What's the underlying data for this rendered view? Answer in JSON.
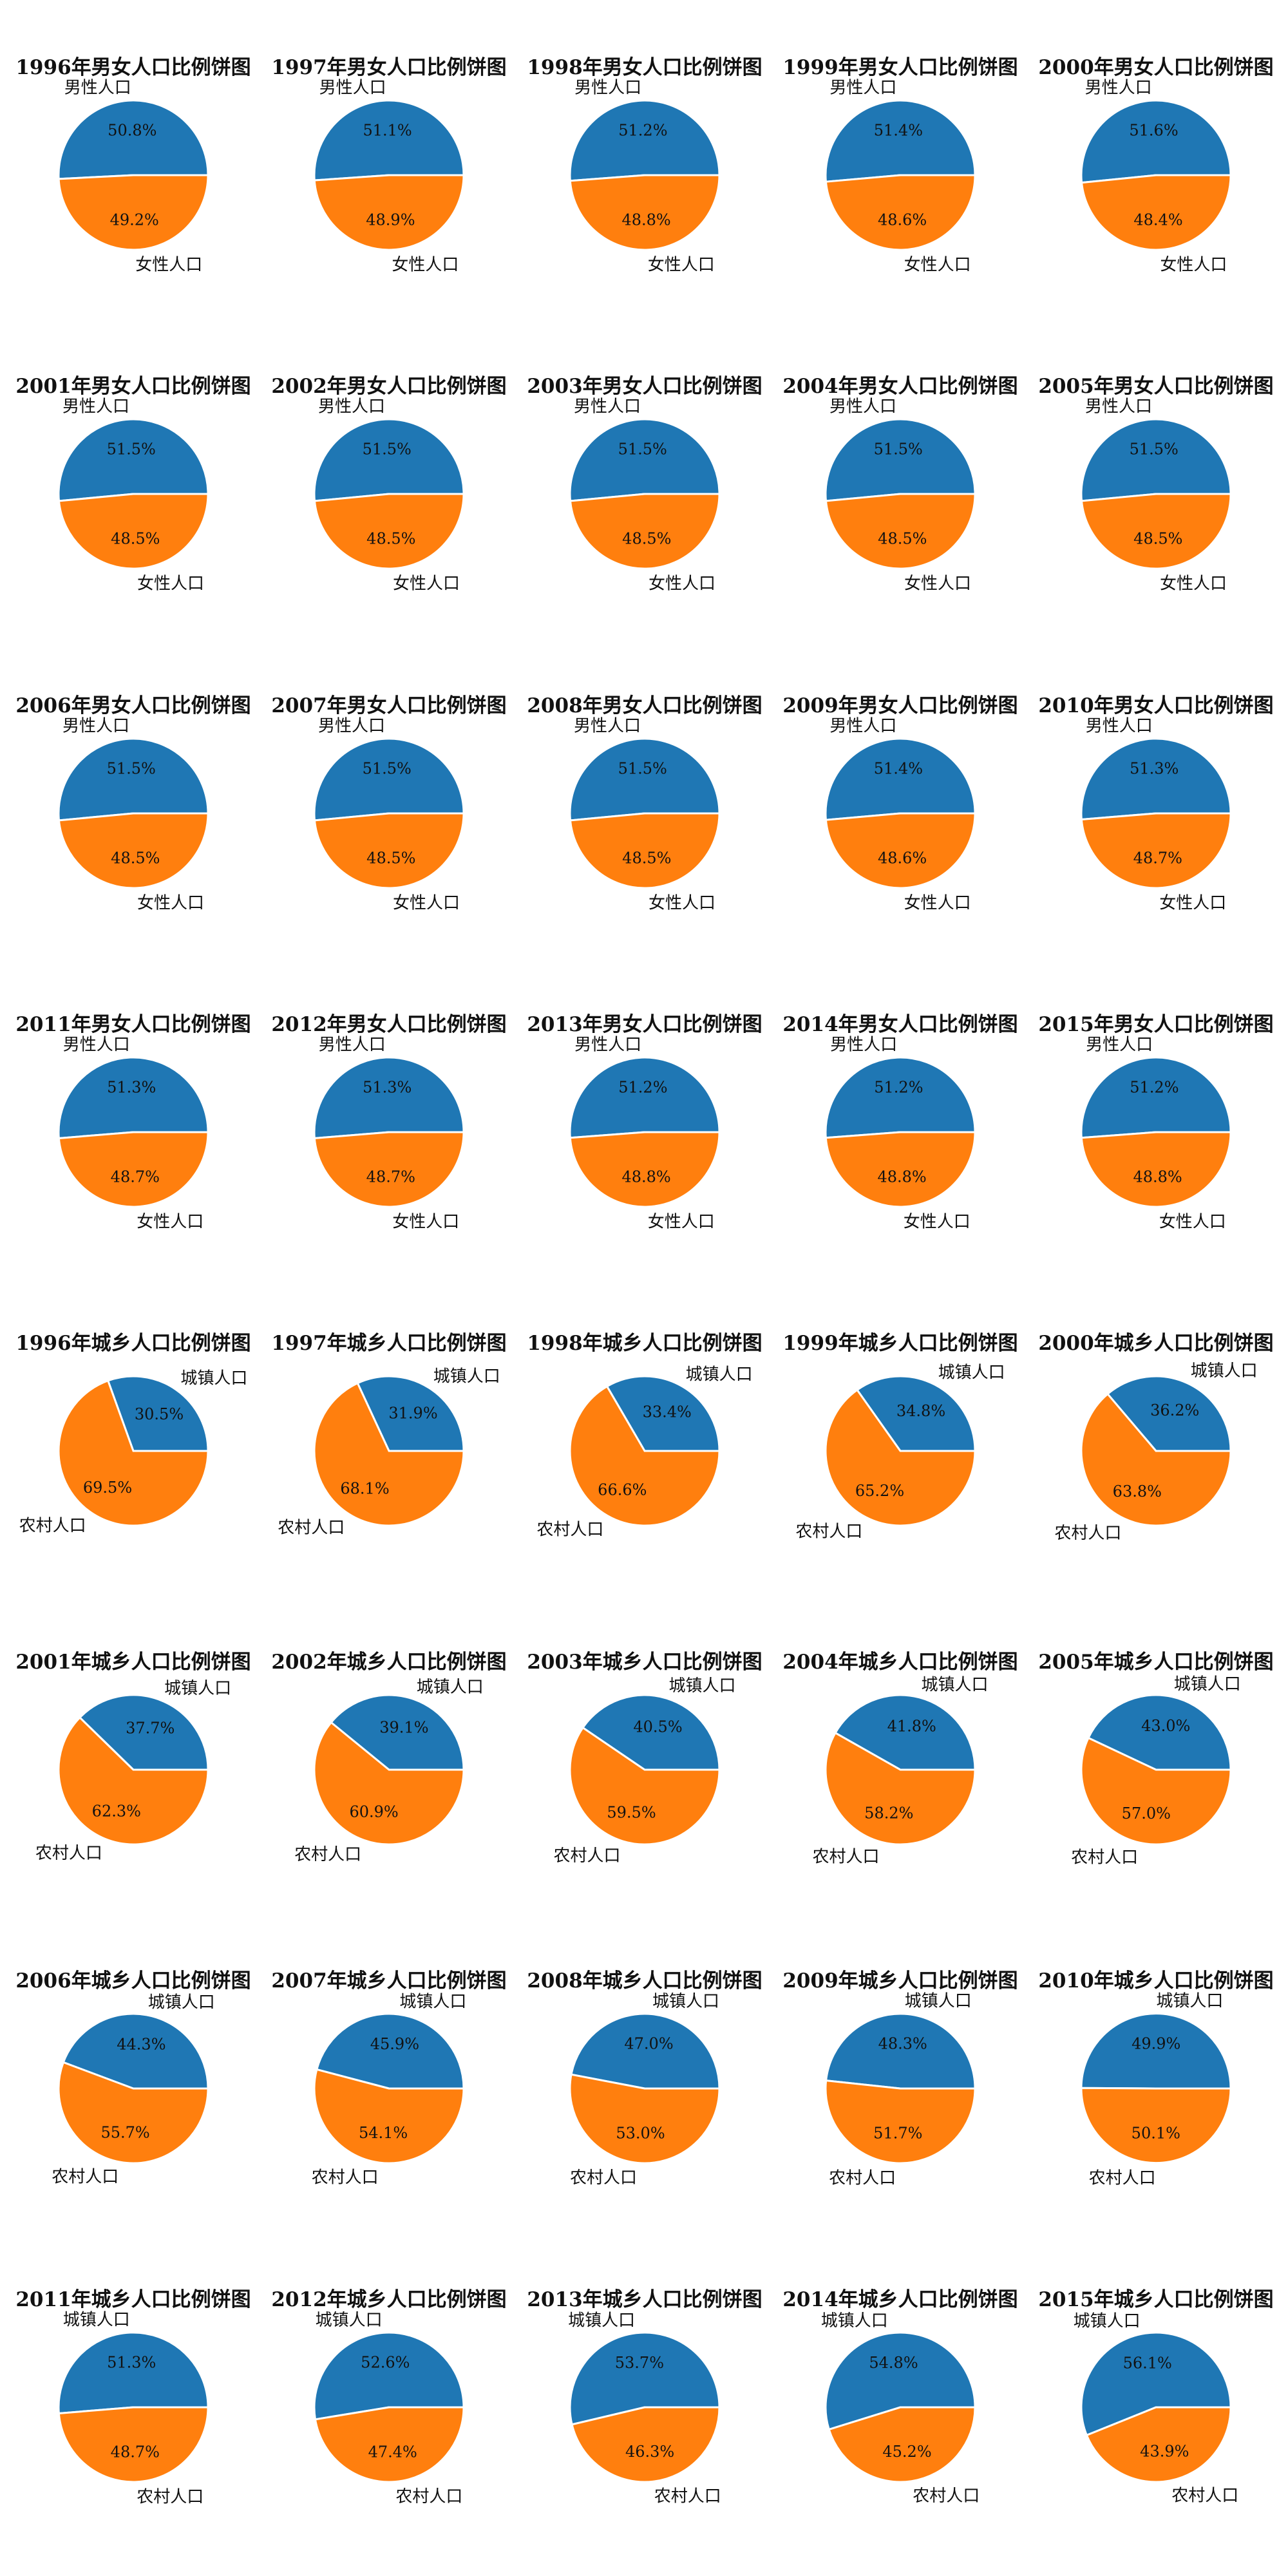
{
  "colors": {
    "series1": "#1f77b4",
    "series2": "#ff7f0e"
  },
  "chart_data": [
    {
      "type": "pie",
      "title": "1996年男女人口比例饼图",
      "labels": [
        "男性人口",
        "女性人口"
      ],
      "values": [
        50.8,
        49.2
      ],
      "percent_labels": [
        "50.8%",
        "49.2%"
      ]
    },
    {
      "type": "pie",
      "title": "1997年男女人口比例饼图",
      "labels": [
        "男性人口",
        "女性人口"
      ],
      "values": [
        51.1,
        48.9
      ],
      "percent_labels": [
        "51.1%",
        "48.9%"
      ]
    },
    {
      "type": "pie",
      "title": "1998年男女人口比例饼图",
      "labels": [
        "男性人口",
        "女性人口"
      ],
      "values": [
        51.2,
        48.8
      ],
      "percent_labels": [
        "51.2%",
        "48.8%"
      ]
    },
    {
      "type": "pie",
      "title": "1999年男女人口比例饼图",
      "labels": [
        "男性人口",
        "女性人口"
      ],
      "values": [
        51.4,
        48.6
      ],
      "percent_labels": [
        "51.4%",
        "48.6%"
      ]
    },
    {
      "type": "pie",
      "title": "2000年男女人口比例饼图",
      "labels": [
        "男性人口",
        "女性人口"
      ],
      "values": [
        51.6,
        48.4
      ],
      "percent_labels": [
        "51.6%",
        "48.4%"
      ]
    },
    {
      "type": "pie",
      "title": "2001年男女人口比例饼图",
      "labels": [
        "男性人口",
        "女性人口"
      ],
      "values": [
        51.5,
        48.5
      ],
      "percent_labels": [
        "51.5%",
        "48.5%"
      ]
    },
    {
      "type": "pie",
      "title": "2002年男女人口比例饼图",
      "labels": [
        "男性人口",
        "女性人口"
      ],
      "values": [
        51.5,
        48.5
      ],
      "percent_labels": [
        "51.5%",
        "48.5%"
      ]
    },
    {
      "type": "pie",
      "title": "2003年男女人口比例饼图",
      "labels": [
        "男性人口",
        "女性人口"
      ],
      "values": [
        51.5,
        48.5
      ],
      "percent_labels": [
        "51.5%",
        "48.5%"
      ]
    },
    {
      "type": "pie",
      "title": "2004年男女人口比例饼图",
      "labels": [
        "男性人口",
        "女性人口"
      ],
      "values": [
        51.5,
        48.5
      ],
      "percent_labels": [
        "51.5%",
        "48.5%"
      ]
    },
    {
      "type": "pie",
      "title": "2005年男女人口比例饼图",
      "labels": [
        "男性人口",
        "女性人口"
      ],
      "values": [
        51.5,
        48.5
      ],
      "percent_labels": [
        "51.5%",
        "48.5%"
      ]
    },
    {
      "type": "pie",
      "title": "2006年男女人口比例饼图",
      "labels": [
        "男性人口",
        "女性人口"
      ],
      "values": [
        51.5,
        48.5
      ],
      "percent_labels": [
        "51.5%",
        "48.5%"
      ]
    },
    {
      "type": "pie",
      "title": "2007年男女人口比例饼图",
      "labels": [
        "男性人口",
        "女性人口"
      ],
      "values": [
        51.5,
        48.5
      ],
      "percent_labels": [
        "51.5%",
        "48.5%"
      ]
    },
    {
      "type": "pie",
      "title": "2008年男女人口比例饼图",
      "labels": [
        "男性人口",
        "女性人口"
      ],
      "values": [
        51.5,
        48.5
      ],
      "percent_labels": [
        "51.5%",
        "48.5%"
      ]
    },
    {
      "type": "pie",
      "title": "2009年男女人口比例饼图",
      "labels": [
        "男性人口",
        "女性人口"
      ],
      "values": [
        51.4,
        48.6
      ],
      "percent_labels": [
        "51.4%",
        "48.6%"
      ]
    },
    {
      "type": "pie",
      "title": "2010年男女人口比例饼图",
      "labels": [
        "男性人口",
        "女性人口"
      ],
      "values": [
        51.3,
        48.7
      ],
      "percent_labels": [
        "51.3%",
        "48.7%"
      ]
    },
    {
      "type": "pie",
      "title": "2011年男女人口比例饼图",
      "labels": [
        "男性人口",
        "女性人口"
      ],
      "values": [
        51.3,
        48.7
      ],
      "percent_labels": [
        "51.3%",
        "48.7%"
      ]
    },
    {
      "type": "pie",
      "title": "2012年男女人口比例饼图",
      "labels": [
        "男性人口",
        "女性人口"
      ],
      "values": [
        51.3,
        48.7
      ],
      "percent_labels": [
        "51.3%",
        "48.7%"
      ]
    },
    {
      "type": "pie",
      "title": "2013年男女人口比例饼图",
      "labels": [
        "男性人口",
        "女性人口"
      ],
      "values": [
        51.2,
        48.8
      ],
      "percent_labels": [
        "51.2%",
        "48.8%"
      ]
    },
    {
      "type": "pie",
      "title": "2014年男女人口比例饼图",
      "labels": [
        "男性人口",
        "女性人口"
      ],
      "values": [
        51.2,
        48.8
      ],
      "percent_labels": [
        "51.2%",
        "48.8%"
      ]
    },
    {
      "type": "pie",
      "title": "2015年男女人口比例饼图",
      "labels": [
        "男性人口",
        "女性人口"
      ],
      "values": [
        51.2,
        48.8
      ],
      "percent_labels": [
        "51.2%",
        "48.8%"
      ]
    },
    {
      "type": "pie",
      "title": "1996年城乡人口比例饼图",
      "labels": [
        "城镇人口",
        "农村人口"
      ],
      "values": [
        30.5,
        69.5
      ],
      "percent_labels": [
        "30.5%",
        "69.5%"
      ]
    },
    {
      "type": "pie",
      "title": "1997年城乡人口比例饼图",
      "labels": [
        "城镇人口",
        "农村人口"
      ],
      "values": [
        31.9,
        68.1
      ],
      "percent_labels": [
        "31.9%",
        "68.1%"
      ]
    },
    {
      "type": "pie",
      "title": "1998年城乡人口比例饼图",
      "labels": [
        "城镇人口",
        "农村人口"
      ],
      "values": [
        33.4,
        66.6
      ],
      "percent_labels": [
        "33.4%",
        "66.6%"
      ]
    },
    {
      "type": "pie",
      "title": "1999年城乡人口比例饼图",
      "labels": [
        "城镇人口",
        "农村人口"
      ],
      "values": [
        34.8,
        65.2
      ],
      "percent_labels": [
        "34.8%",
        "65.2%"
      ]
    },
    {
      "type": "pie",
      "title": "2000年城乡人口比例饼图",
      "labels": [
        "城镇人口",
        "农村人口"
      ],
      "values": [
        36.2,
        63.8
      ],
      "percent_labels": [
        "36.2%",
        "63.8%"
      ]
    },
    {
      "type": "pie",
      "title": "2001年城乡人口比例饼图",
      "labels": [
        "城镇人口",
        "农村人口"
      ],
      "values": [
        37.7,
        62.3
      ],
      "percent_labels": [
        "37.7%",
        "62.3%"
      ]
    },
    {
      "type": "pie",
      "title": "2002年城乡人口比例饼图",
      "labels": [
        "城镇人口",
        "农村人口"
      ],
      "values": [
        39.1,
        60.9
      ],
      "percent_labels": [
        "39.1%",
        "60.9%"
      ]
    },
    {
      "type": "pie",
      "title": "2003年城乡人口比例饼图",
      "labels": [
        "城镇人口",
        "农村人口"
      ],
      "values": [
        40.5,
        59.5
      ],
      "percent_labels": [
        "40.5%",
        "59.5%"
      ]
    },
    {
      "type": "pie",
      "title": "2004年城乡人口比例饼图",
      "labels": [
        "城镇人口",
        "农村人口"
      ],
      "values": [
        41.8,
        58.2
      ],
      "percent_labels": [
        "41.8%",
        "58.2%"
      ]
    },
    {
      "type": "pie",
      "title": "2005年城乡人口比例饼图",
      "labels": [
        "城镇人口",
        "农村人口"
      ],
      "values": [
        43.0,
        57.0
      ],
      "percent_labels": [
        "43.0%",
        "57.0%"
      ]
    },
    {
      "type": "pie",
      "title": "2006年城乡人口比例饼图",
      "labels": [
        "城镇人口",
        "农村人口"
      ],
      "values": [
        44.3,
        55.7
      ],
      "percent_labels": [
        "44.3%",
        "55.7%"
      ]
    },
    {
      "type": "pie",
      "title": "2007年城乡人口比例饼图",
      "labels": [
        "城镇人口",
        "农村人口"
      ],
      "values": [
        45.9,
        54.1
      ],
      "percent_labels": [
        "45.9%",
        "54.1%"
      ]
    },
    {
      "type": "pie",
      "title": "2008年城乡人口比例饼图",
      "labels": [
        "城镇人口",
        "农村人口"
      ],
      "values": [
        47.0,
        53.0
      ],
      "percent_labels": [
        "47.0%",
        "53.0%"
      ]
    },
    {
      "type": "pie",
      "title": "2009年城乡人口比例饼图",
      "labels": [
        "城镇人口",
        "农村人口"
      ],
      "values": [
        48.3,
        51.7
      ],
      "percent_labels": [
        "48.3%",
        "51.7%"
      ]
    },
    {
      "type": "pie",
      "title": "2010年城乡人口比例饼图",
      "labels": [
        "城镇人口",
        "农村人口"
      ],
      "values": [
        49.9,
        50.1
      ],
      "percent_labels": [
        "49.9%",
        "50.1%"
      ]
    },
    {
      "type": "pie",
      "title": "2011年城乡人口比例饼图",
      "labels": [
        "城镇人口",
        "农村人口"
      ],
      "values": [
        51.3,
        48.7
      ],
      "percent_labels": [
        "51.3%",
        "48.7%"
      ]
    },
    {
      "type": "pie",
      "title": "2012年城乡人口比例饼图",
      "labels": [
        "城镇人口",
        "农村人口"
      ],
      "values": [
        52.6,
        47.4
      ],
      "percent_labels": [
        "52.6%",
        "47.4%"
      ]
    },
    {
      "type": "pie",
      "title": "2013年城乡人口比例饼图",
      "labels": [
        "城镇人口",
        "农村人口"
      ],
      "values": [
        53.7,
        46.3
      ],
      "percent_labels": [
        "53.7%",
        "46.3%"
      ]
    },
    {
      "type": "pie",
      "title": "2014年城乡人口比例饼图",
      "labels": [
        "城镇人口",
        "农村人口"
      ],
      "values": [
        54.8,
        45.2
      ],
      "percent_labels": [
        "54.8%",
        "45.2%"
      ]
    },
    {
      "type": "pie",
      "title": "2015年城乡人口比例饼图",
      "labels": [
        "城镇人口",
        "农村人口"
      ],
      "values": [
        56.1,
        43.9
      ],
      "percent_labels": [
        "56.1%",
        "43.9%"
      ]
    }
  ]
}
